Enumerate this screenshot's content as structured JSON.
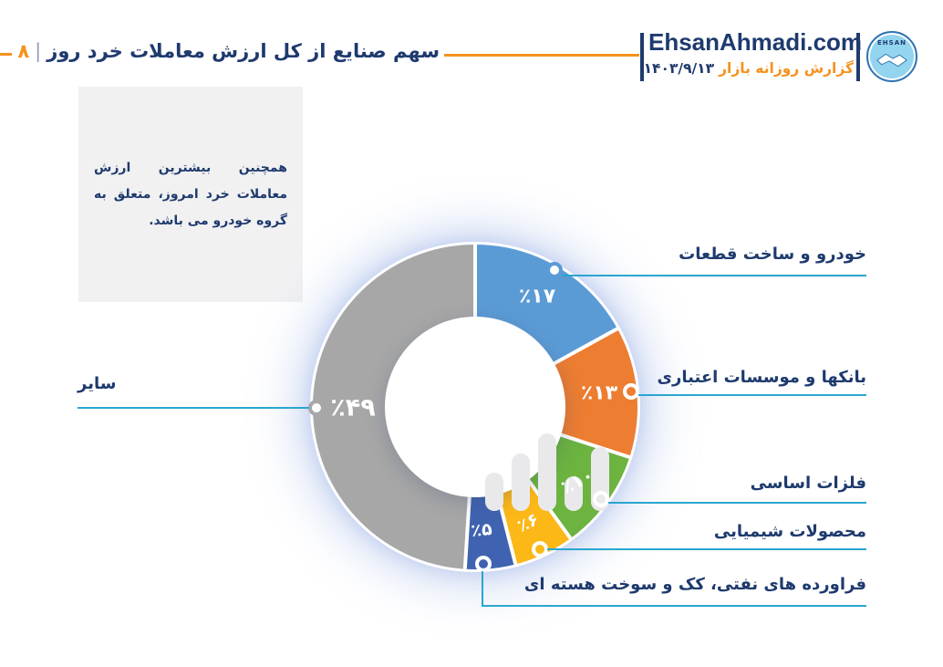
{
  "header": {
    "title": "سهم صنایع از کل ارزش معاملات خرد روز",
    "divider": "|",
    "page_number": "۸",
    "brand": "EhsanAhmadi.com",
    "report_label": "گزارش روزانه بازار",
    "report_date": "۱۴۰۳/۹/۱۳",
    "logo_text": "EHSAN"
  },
  "note_box": {
    "text": "همچنین  بیشترین ارزش معاملات خرد امروز، متعلق به گروه خودرو می باشد."
  },
  "chart_data": {
    "type": "pie",
    "subtype": "donut",
    "title": "سهم صنایع از کل ارزش معاملات خرد روز",
    "unit": "percent",
    "start_angle_deg": 0,
    "direction": "clockwise",
    "center_icon": "bar-chart-icon",
    "segments": [
      {
        "label": "خودرو و ساخت قطعات",
        "value": 17,
        "display": "٪۱۷",
        "color": "#5b9bd5"
      },
      {
        "label": "بانکها و موسسات اعتباری",
        "value": 13,
        "display": "٪۱۳",
        "color": "#ed7d31"
      },
      {
        "label": "فلزات اساسی",
        "value": 10,
        "display": "٪۱۰",
        "color": "#6cb340"
      },
      {
        "label": "محصولات شیمیایی",
        "value": 6,
        "display": "٪۶",
        "color": "#fcb817"
      },
      {
        "label": "فراورده های نفتی، کک و سوخت هسته ای",
        "value": 5,
        "display": "٪۵",
        "color": "#3f63b0"
      },
      {
        "label": "سایر",
        "value": 49,
        "display": "٪۴۹",
        "color": "#a7a7a7"
      }
    ]
  },
  "colors": {
    "navy": "#1e3a6e",
    "orange": "#f5921e",
    "line": "#2aa6cf",
    "divider": "#8f9db5",
    "boxbg": "#f1f1f2",
    "baricon": "#e9e9ec"
  }
}
